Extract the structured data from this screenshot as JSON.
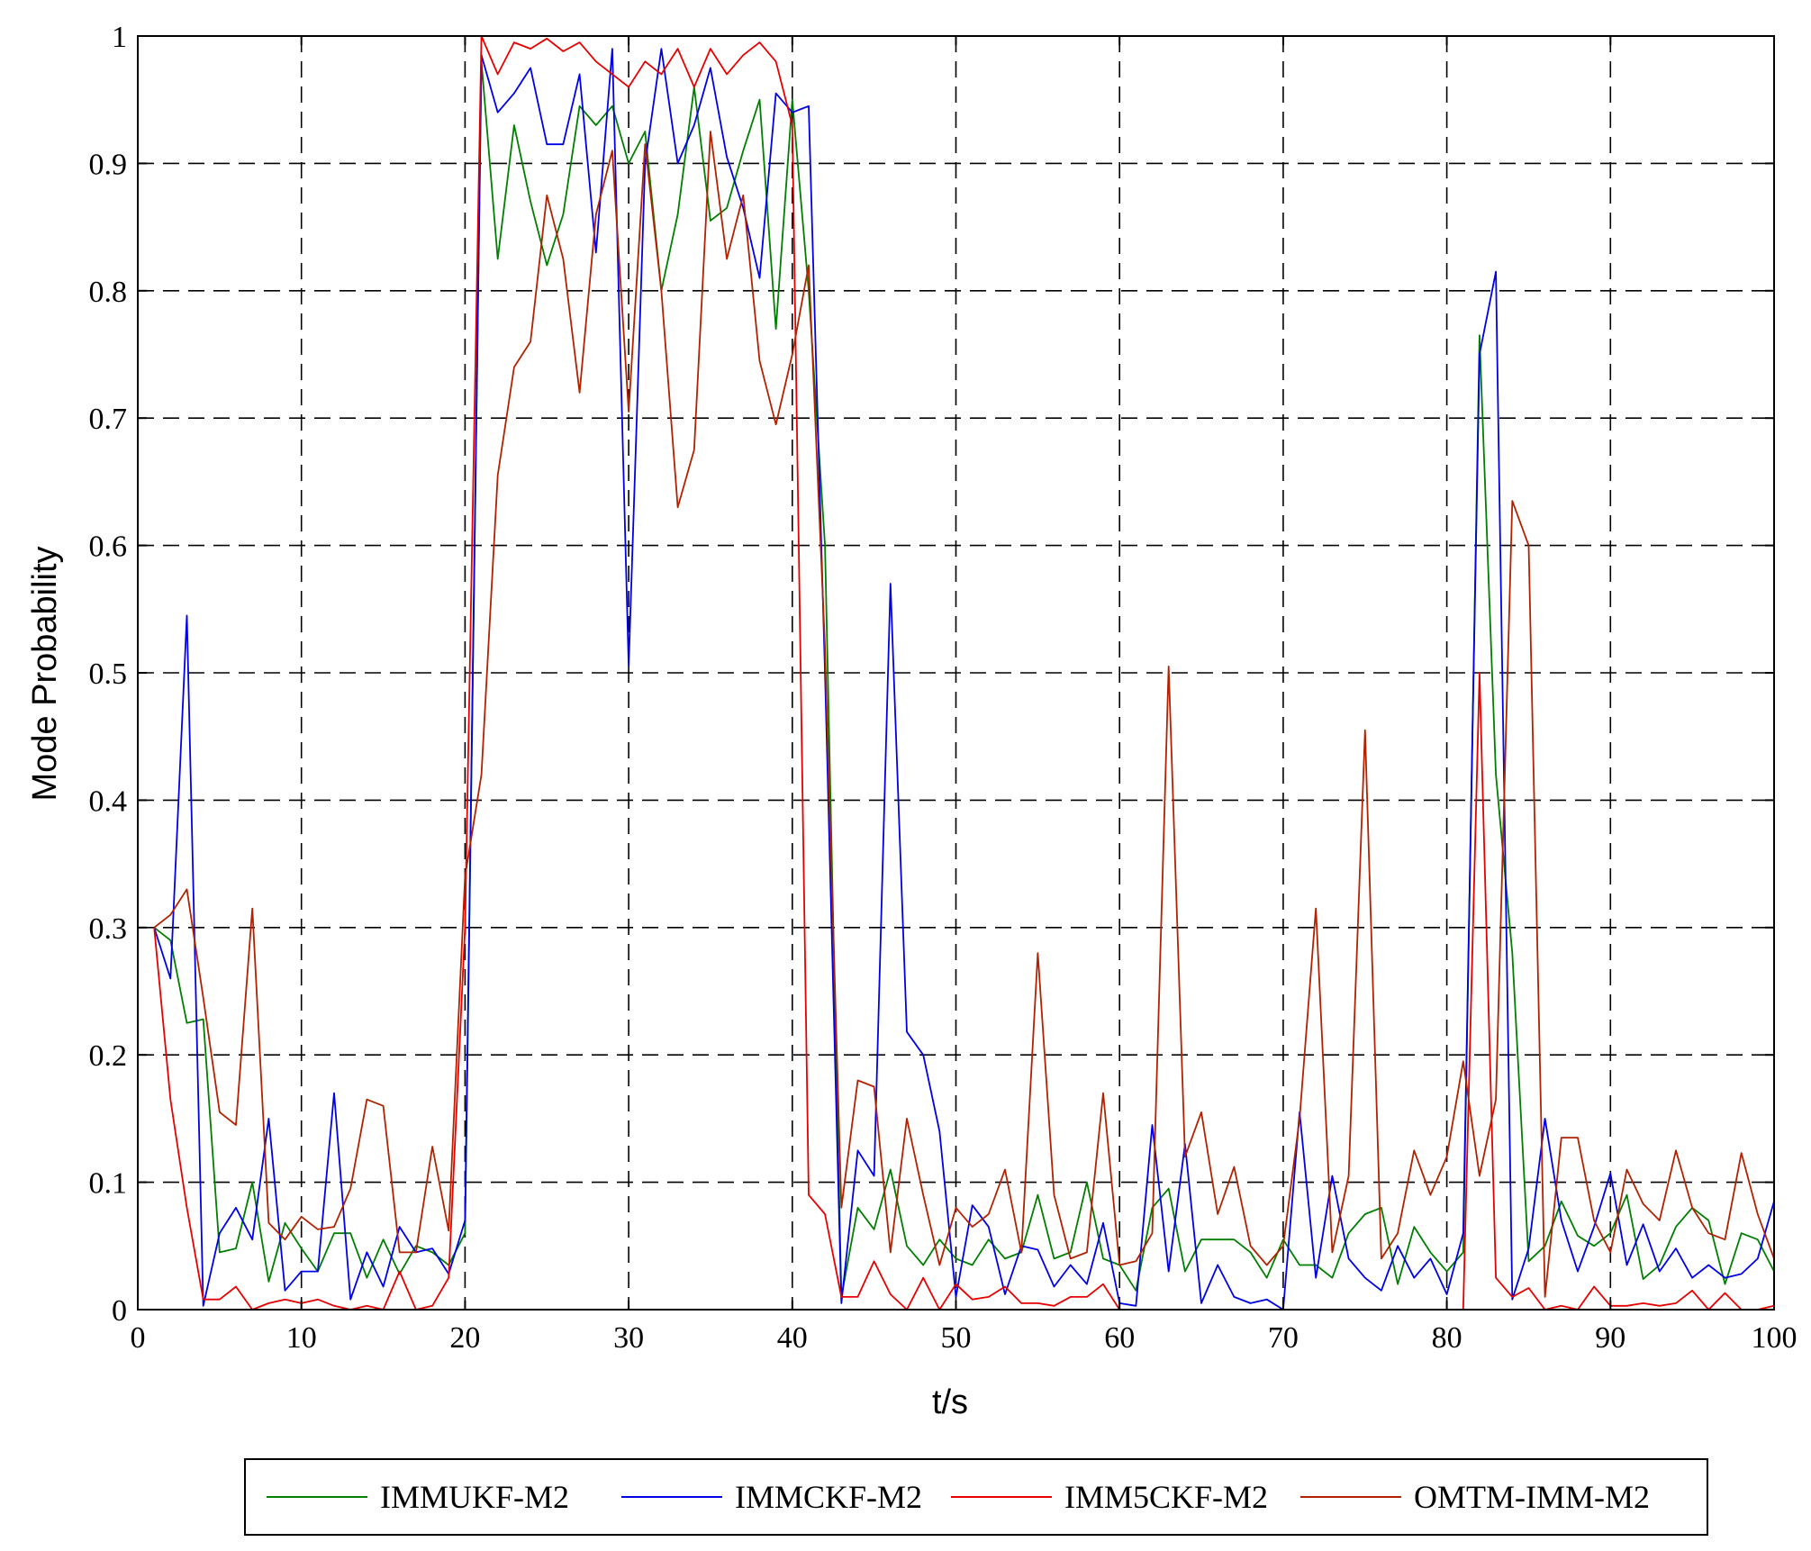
{
  "chart_data": {
    "type": "line",
    "title": "",
    "xlabel": "t/s",
    "ylabel": "Mode Probability",
    "xlim": [
      0,
      100
    ],
    "ylim": [
      0,
      1
    ],
    "xticks": [
      0,
      10,
      20,
      30,
      40,
      50,
      60,
      70,
      80,
      90,
      100
    ],
    "yticks": [
      0,
      0.1,
      0.2,
      0.3,
      0.4,
      0.5,
      0.6,
      0.7,
      0.8,
      0.9,
      1
    ],
    "xtick_labels": [
      "0",
      "10",
      "20",
      "30",
      "40",
      "50",
      "60",
      "70",
      "80",
      "90",
      "100"
    ],
    "ytick_labels": [
      "0",
      "0.1",
      "0.2",
      "0.3",
      "0.4",
      "0.5",
      "0.6",
      "0.7",
      "0.8",
      "0.9",
      "1"
    ],
    "grid": true,
    "grid_style": "dashed",
    "legend_position": "bottom",
    "x": [
      1,
      2,
      3,
      4,
      5,
      6,
      7,
      8,
      9,
      10,
      11,
      12,
      13,
      14,
      15,
      16,
      17,
      18,
      19,
      20,
      21,
      22,
      23,
      24,
      25,
      26,
      27,
      28,
      29,
      30,
      31,
      32,
      33,
      34,
      35,
      36,
      37,
      38,
      39,
      40,
      41,
      42,
      43,
      44,
      45,
      46,
      47,
      48,
      49,
      50,
      51,
      52,
      53,
      54,
      55,
      56,
      57,
      58,
      59,
      60,
      61,
      62,
      63,
      64,
      65,
      66,
      67,
      68,
      69,
      70,
      71,
      72,
      73,
      74,
      75,
      76,
      77,
      78,
      79,
      80,
      81,
      82,
      83,
      84,
      85,
      86,
      87,
      88,
      89,
      90,
      91,
      92,
      93,
      94,
      95,
      96,
      97,
      98,
      99,
      100
    ],
    "series": [
      {
        "name": "IMMUKF-M2",
        "color": "#007f00",
        "values": [
          0.3,
          0.29,
          0.225,
          0.228,
          0.045,
          0.048,
          0.1,
          0.022,
          0.068,
          0.048,
          0.03,
          0.06,
          0.06,
          0.025,
          0.055,
          0.028,
          0.05,
          0.045,
          0.035,
          0.06,
          0.98,
          0.825,
          0.93,
          0.87,
          0.82,
          0.86,
          0.945,
          0.93,
          0.945,
          0.9,
          0.925,
          0.8,
          0.86,
          0.96,
          0.855,
          0.865,
          0.91,
          0.95,
          0.77,
          0.95,
          0.8,
          0.6,
          0.01,
          0.08,
          0.063,
          0.11,
          0.05,
          0.035,
          0.055,
          0.04,
          0.035,
          0.055,
          0.04,
          0.045,
          0.09,
          0.04,
          0.045,
          0.1,
          0.04,
          0.035,
          0.015,
          0.08,
          0.095,
          0.03,
          0.055,
          0.055,
          0.055,
          0.045,
          0.025,
          0.055,
          0.035,
          0.035,
          0.025,
          0.06,
          0.075,
          0.08,
          0.02,
          0.065,
          0.045,
          0.03,
          0.045,
          0.765,
          0.42,
          0.28,
          0.038,
          0.05,
          0.085,
          0.058,
          0.05,
          0.06,
          0.09,
          0.024,
          0.035,
          0.065,
          0.08,
          0.07,
          0.02,
          0.06,
          0.055,
          0.03
        ]
      },
      {
        "name": "IMMCKF-M2",
        "color": "#0000e6",
        "values": [
          0.3,
          0.26,
          0.545,
          0.003,
          0.06,
          0.08,
          0.055,
          0.15,
          0.015,
          0.03,
          0.03,
          0.17,
          0.008,
          0.045,
          0.018,
          0.065,
          0.045,
          0.048,
          0.028,
          0.07,
          0.985,
          0.94,
          0.955,
          0.975,
          0.915,
          0.915,
          0.97,
          0.83,
          0.99,
          0.505,
          0.9,
          0.99,
          0.9,
          0.93,
          0.975,
          0.905,
          0.865,
          0.81,
          0.955,
          0.94,
          0.945,
          0.5,
          0.005,
          0.125,
          0.105,
          0.57,
          0.218,
          0.2,
          0.14,
          0.01,
          0.082,
          0.065,
          0.012,
          0.05,
          0.047,
          0.018,
          0.035,
          0.02,
          0.068,
          0.005,
          0.003,
          0.145,
          0.03,
          0.13,
          0.005,
          0.035,
          0.01,
          0.005,
          0.008,
          0.0,
          0.155,
          0.025,
          0.105,
          0.04,
          0.025,
          0.015,
          0.05,
          0.025,
          0.04,
          0.012,
          0.06,
          0.75,
          0.815,
          0.008,
          0.048,
          0.15,
          0.07,
          0.03,
          0.065,
          0.107,
          0.035,
          0.067,
          0.03,
          0.048,
          0.025,
          0.035,
          0.025,
          0.028,
          0.04,
          0.085
        ]
      },
      {
        "name": "IMM5CKF-M2",
        "color": "#e60000",
        "values": [
          0.3,
          0.165,
          0.08,
          0.008,
          0.008,
          0.018,
          0.0,
          0.005,
          0.008,
          0.005,
          0.008,
          0.003,
          0.0,
          0.003,
          0.0,
          0.03,
          0.0,
          0.003,
          0.025,
          0.3,
          1.0,
          0.97,
          0.995,
          0.99,
          0.998,
          0.988,
          0.995,
          0.98,
          0.97,
          0.96,
          0.98,
          0.97,
          0.99,
          0.96,
          0.99,
          0.97,
          0.985,
          0.995,
          0.98,
          0.93,
          0.09,
          0.075,
          0.01,
          0.01,
          0.038,
          0.012,
          0.0,
          0.025,
          0.0,
          0.02,
          0.008,
          0.01,
          0.018,
          0.005,
          0.005,
          0.003,
          0.01,
          0.01,
          0.02,
          0.0,
          0.0,
          0.0,
          0.0,
          0.0,
          0.0,
          0.0,
          0.0,
          0.0,
          0.0,
          0.0,
          0.0,
          0.0,
          0.0,
          0.0,
          0.0,
          0.0,
          0.0,
          0.0,
          0.0,
          0.0,
          0.0,
          0.5,
          0.025,
          0.01,
          0.017,
          0.0,
          0.003,
          0.0,
          0.018,
          0.003,
          0.003,
          0.005,
          0.003,
          0.005,
          0.015,
          0.0,
          0.013,
          0.0,
          0.0,
          0.003
        ]
      },
      {
        "name": "OMTM-IMM-M2",
        "color": "#b22200",
        "values": [
          0.3,
          0.31,
          0.33,
          0.245,
          0.155,
          0.145,
          0.315,
          0.068,
          0.055,
          0.073,
          0.063,
          0.065,
          0.095,
          0.165,
          0.16,
          0.045,
          0.045,
          0.128,
          0.062,
          0.34,
          0.42,
          0.655,
          0.74,
          0.76,
          0.875,
          0.825,
          0.72,
          0.86,
          0.91,
          0.705,
          0.915,
          0.8,
          0.63,
          0.675,
          0.925,
          0.825,
          0.875,
          0.745,
          0.695,
          0.75,
          0.82,
          0.52,
          0.08,
          0.18,
          0.175,
          0.045,
          0.15,
          0.09,
          0.035,
          0.08,
          0.065,
          0.075,
          0.11,
          0.045,
          0.28,
          0.09,
          0.04,
          0.045,
          0.17,
          0.035,
          0.038,
          0.06,
          0.505,
          0.12,
          0.155,
          0.075,
          0.112,
          0.05,
          0.035,
          0.05,
          0.15,
          0.315,
          0.045,
          0.105,
          0.455,
          0.04,
          0.06,
          0.125,
          0.09,
          0.12,
          0.195,
          0.105,
          0.165,
          0.635,
          0.6,
          0.01,
          0.135,
          0.135,
          0.07,
          0.045,
          0.11,
          0.083,
          0.07,
          0.125,
          0.08,
          0.06,
          0.055,
          0.123,
          0.075,
          0.04
        ]
      }
    ]
  }
}
